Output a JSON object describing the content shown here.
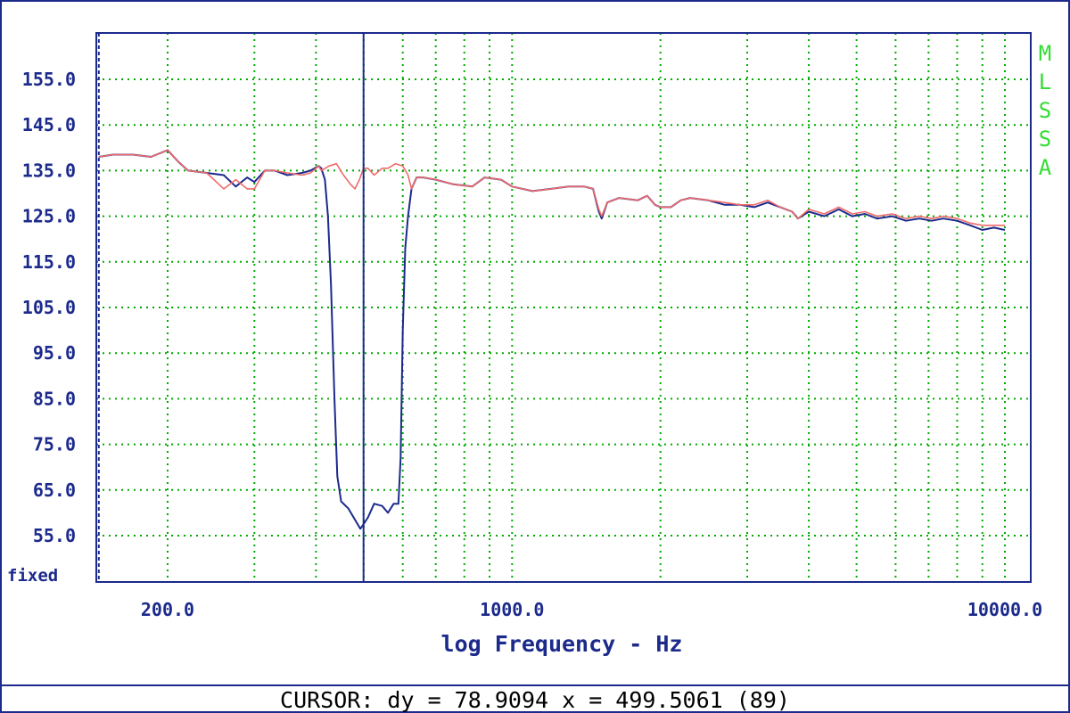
{
  "chart_data": {
    "type": "line",
    "xlabel": "log Frequency - Hz",
    "ylabel": "",
    "xscale": "log",
    "xlim": [
      135,
      11500
    ],
    "ylim": [
      47,
      165
    ],
    "grid": true,
    "y_ticks": [
      155.0,
      145.0,
      135.0,
      125.0,
      115.0,
      105.0,
      95.0,
      85.0,
      75.0,
      65.0,
      55.0
    ],
    "y_tick_labels": [
      "155.0",
      "145.0",
      "135.0",
      "125.0",
      "115.0",
      "105.0",
      "95.0",
      "85.0",
      "75.0",
      "65.0",
      "55.0"
    ],
    "y_scale_label": "fixed",
    "x_tick_labels": [
      {
        "x": 200,
        "label": "200.0"
      },
      {
        "x": 1000,
        "label": "1000.0"
      },
      {
        "x": 10000,
        "label": "10000.0"
      }
    ],
    "side_label": "MLSSA",
    "cursor": {
      "fixed_x": 145,
      "x": 499.5061
    },
    "series": [
      {
        "color": "#1c2a8c",
        "points": [
          [
            145,
            138.0
          ],
          [
            155,
            138.5
          ],
          [
            170,
            138.5
          ],
          [
            185,
            138.0
          ],
          [
            200,
            139.5
          ],
          [
            210,
            137.0
          ],
          [
            220,
            135.0
          ],
          [
            240,
            134.5
          ],
          [
            260,
            134.0
          ],
          [
            275,
            131.5
          ],
          [
            290,
            133.5
          ],
          [
            300,
            132.5
          ],
          [
            315,
            135.0
          ],
          [
            330,
            135.0
          ],
          [
            350,
            134.0
          ],
          [
            375,
            134.5
          ],
          [
            390,
            135.0
          ],
          [
            405,
            136.0
          ],
          [
            410,
            135.5
          ],
          [
            417,
            133.0
          ],
          [
            423,
            125.0
          ],
          [
            429,
            110.0
          ],
          [
            436,
            85.0
          ],
          [
            442,
            68.0
          ],
          [
            450,
            62.5
          ],
          [
            465,
            61.0
          ],
          [
            480,
            58.5
          ],
          [
            492,
            56.5
          ],
          [
            499.5,
            57.5
          ],
          [
            510,
            59.0
          ],
          [
            525,
            62.0
          ],
          [
            545,
            61.5
          ],
          [
            560,
            60.0
          ],
          [
            575,
            62.0
          ],
          [
            588,
            62.0
          ],
          [
            594,
            72.0
          ],
          [
            600,
            100.0
          ],
          [
            607,
            118.0
          ],
          [
            615,
            125.0
          ],
          [
            625,
            131.0
          ],
          [
            640,
            133.5
          ],
          [
            660,
            133.5
          ],
          [
            700,
            133.0
          ],
          [
            760,
            132.0
          ],
          [
            830,
            131.5
          ],
          [
            880,
            133.5
          ],
          [
            950,
            133.0
          ],
          [
            1000,
            131.5
          ],
          [
            1100,
            130.5
          ],
          [
            1200,
            131.0
          ],
          [
            1300,
            131.5
          ],
          [
            1400,
            131.5
          ],
          [
            1460,
            131.0
          ],
          [
            1500,
            126.0
          ],
          [
            1520,
            124.5
          ],
          [
            1560,
            128.0
          ],
          [
            1650,
            129.0
          ],
          [
            1800,
            128.5
          ],
          [
            1880,
            129.5
          ],
          [
            1950,
            127.5
          ],
          [
            2000,
            127.0
          ],
          [
            2100,
            127.0
          ],
          [
            2200,
            128.5
          ],
          [
            2300,
            129.0
          ],
          [
            2500,
            128.5
          ],
          [
            2700,
            127.5
          ],
          [
            2900,
            127.5
          ],
          [
            3100,
            127.0
          ],
          [
            3300,
            128.0
          ],
          [
            3500,
            127.0
          ],
          [
            3700,
            126.0
          ],
          [
            3800,
            124.5
          ],
          [
            4000,
            126.0
          ],
          [
            4300,
            125.0
          ],
          [
            4600,
            126.5
          ],
          [
            4900,
            125.0
          ],
          [
            5200,
            125.5
          ],
          [
            5500,
            124.5
          ],
          [
            5900,
            125.0
          ],
          [
            6300,
            124.0
          ],
          [
            6700,
            124.5
          ],
          [
            7100,
            124.0
          ],
          [
            7500,
            124.5
          ],
          [
            8000,
            124.0
          ],
          [
            8500,
            123.0
          ],
          [
            9000,
            122.0
          ],
          [
            9500,
            122.5
          ],
          [
            10000,
            122.0
          ]
        ]
      },
      {
        "color": "#f06a6a",
        "points": [
          [
            145,
            138.0
          ],
          [
            155,
            138.5
          ],
          [
            170,
            138.5
          ],
          [
            185,
            138.0
          ],
          [
            200,
            139.5
          ],
          [
            210,
            137.0
          ],
          [
            220,
            135.0
          ],
          [
            240,
            134.5
          ],
          [
            260,
            131.0
          ],
          [
            275,
            133.0
          ],
          [
            290,
            131.0
          ],
          [
            300,
            131.0
          ],
          [
            315,
            135.0
          ],
          [
            330,
            135.0
          ],
          [
            350,
            134.5
          ],
          [
            375,
            134.0
          ],
          [
            390,
            134.5
          ],
          [
            405,
            136.0
          ],
          [
            410,
            135.0
          ],
          [
            425,
            136.0
          ],
          [
            440,
            136.5
          ],
          [
            455,
            134.0
          ],
          [
            470,
            132.0
          ],
          [
            480,
            131.0
          ],
          [
            490,
            133.0
          ],
          [
            499.5,
            135.5
          ],
          [
            510,
            135.5
          ],
          [
            525,
            134.0
          ],
          [
            545,
            135.5
          ],
          [
            560,
            135.5
          ],
          [
            580,
            136.5
          ],
          [
            600,
            136.0
          ],
          [
            615,
            134.0
          ],
          [
            625,
            131.0
          ],
          [
            640,
            133.5
          ],
          [
            660,
            133.5
          ],
          [
            700,
            133.0
          ],
          [
            760,
            132.0
          ],
          [
            830,
            131.5
          ],
          [
            880,
            133.5
          ],
          [
            950,
            133.0
          ],
          [
            1000,
            131.5
          ],
          [
            1100,
            130.5
          ],
          [
            1200,
            131.0
          ],
          [
            1300,
            131.5
          ],
          [
            1400,
            131.5
          ],
          [
            1460,
            131.0
          ],
          [
            1500,
            126.5
          ],
          [
            1520,
            125.0
          ],
          [
            1560,
            128.0
          ],
          [
            1650,
            129.0
          ],
          [
            1800,
            128.5
          ],
          [
            1880,
            129.5
          ],
          [
            1950,
            127.5
          ],
          [
            2000,
            127.0
          ],
          [
            2100,
            127.0
          ],
          [
            2200,
            128.5
          ],
          [
            2300,
            129.0
          ],
          [
            2500,
            128.5
          ],
          [
            2700,
            128.0
          ],
          [
            2900,
            127.5
          ],
          [
            3100,
            127.5
          ],
          [
            3300,
            128.5
          ],
          [
            3500,
            127.0
          ],
          [
            3700,
            126.0
          ],
          [
            3800,
            124.5
          ],
          [
            4000,
            126.5
          ],
          [
            4300,
            125.5
          ],
          [
            4600,
            127.0
          ],
          [
            4900,
            125.5
          ],
          [
            5200,
            126.0
          ],
          [
            5500,
            125.0
          ],
          [
            5900,
            125.5
          ],
          [
            6300,
            124.5
          ],
          [
            6700,
            125.0
          ],
          [
            7100,
            124.5
          ],
          [
            7500,
            125.0
          ],
          [
            8000,
            124.5
          ],
          [
            8500,
            123.5
          ],
          [
            9000,
            123.0
          ],
          [
            9500,
            123.0
          ],
          [
            10000,
            123.0
          ]
        ]
      }
    ]
  },
  "status": {
    "cursor_text": "CURSOR: dy = 78.9094 x = 499.5061 (89)"
  },
  "colors": {
    "frame": "#1c2a8c",
    "grid": "#00aa00",
    "side_label": "#33dd33",
    "trace_dark": "#1c2a8c",
    "trace_light": "#f06a6a"
  }
}
